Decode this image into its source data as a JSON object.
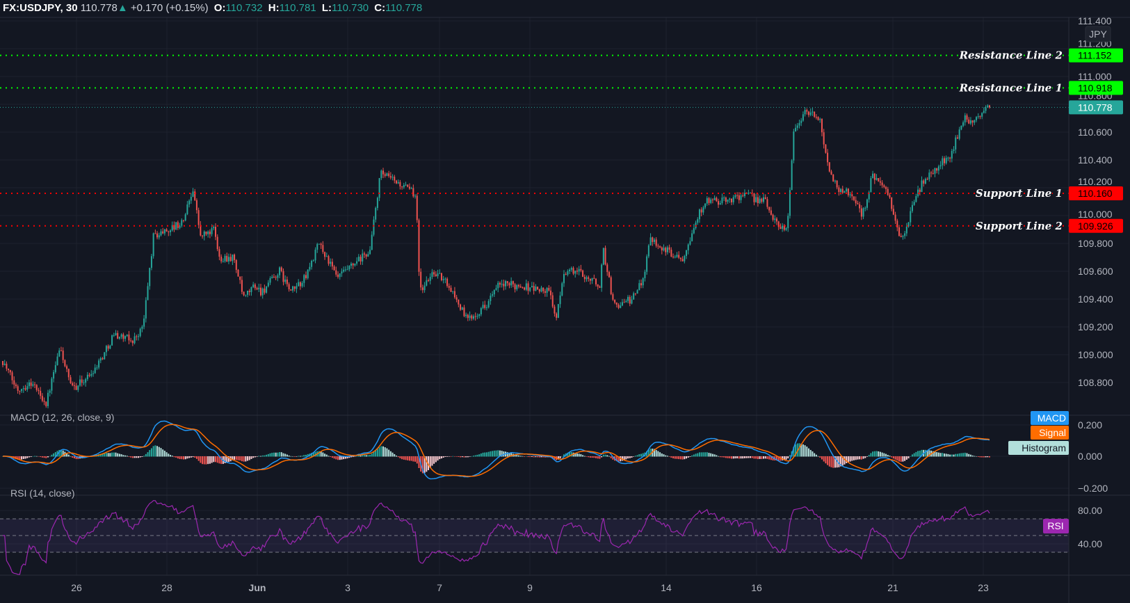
{
  "header": {
    "symbol": "FX:USDJPY, 30",
    "last": "110.778",
    "change": "+0.170 (+0.15%)",
    "o_label": "O:",
    "o": "110.732",
    "h_label": "H:",
    "h": "110.781",
    "l_label": "L:",
    "l": "110.730",
    "c_label": "C:",
    "c": "110.778"
  },
  "colors": {
    "background": "#131722",
    "grid": "#1e222d",
    "up": "#26a69a",
    "down": "#ef5350",
    "resistance": "#00ff00",
    "support": "#ff0000",
    "macd": "#2196f3",
    "signal": "#ff6d00",
    "histogram": "#b2dfdb",
    "rsi": "#9c27b0"
  },
  "currency_label": "JPY",
  "chart_data": {
    "type": "candlestick",
    "symbol": "FX:USDJPY",
    "interval": "30",
    "ylim": [
      108.65,
      111.45
    ],
    "price_ticks": [
      "108.800",
      "109.000",
      "109.200",
      "109.400",
      "109.600",
      "109.800",
      "110.000",
      "110.200",
      "110.400",
      "110.600",
      "110.800",
      "111.000",
      "111.200",
      "111.400"
    ],
    "date_ticks": [
      "26",
      "28",
      "Jun",
      "3",
      "7",
      "9",
      "14",
      "16",
      "21",
      "23"
    ],
    "price_path": [
      [
        4,
        108.9
      ],
      [
        15,
        108.75
      ],
      [
        31,
        108.8
      ],
      [
        46,
        108.65
      ],
      [
        61,
        109.05
      ],
      [
        73,
        108.75
      ],
      [
        92,
        108.85
      ],
      [
        107,
        109.0
      ],
      [
        118,
        109.15
      ],
      [
        138,
        109.1
      ],
      [
        149,
        109.2
      ],
      [
        160,
        109.85
      ],
      [
        176,
        109.9
      ],
      [
        191,
        109.95
      ],
      [
        202,
        110.2
      ],
      [
        210,
        109.85
      ],
      [
        225,
        109.9
      ],
      [
        229,
        109.7
      ],
      [
        245,
        109.7
      ],
      [
        256,
        109.4
      ],
      [
        267,
        109.5
      ],
      [
        275,
        109.45
      ],
      [
        294,
        109.6
      ],
      [
        306,
        109.45
      ],
      [
        321,
        109.55
      ],
      [
        336,
        109.8
      ],
      [
        344,
        109.7
      ],
      [
        355,
        109.55
      ],
      [
        374,
        109.65
      ],
      [
        390,
        109.75
      ],
      [
        401,
        110.3
      ],
      [
        416,
        110.25
      ],
      [
        439,
        110.15
      ],
      [
        443,
        109.45
      ],
      [
        458,
        109.6
      ],
      [
        474,
        109.5
      ],
      [
        493,
        109.25
      ],
      [
        512,
        109.35
      ],
      [
        527,
        109.5
      ],
      [
        550,
        109.5
      ],
      [
        581,
        109.45
      ],
      [
        588,
        109.25
      ],
      [
        596,
        109.6
      ],
      [
        611,
        109.6
      ],
      [
        634,
        109.5
      ],
      [
        638,
        109.75
      ],
      [
        649,
        109.35
      ],
      [
        669,
        109.4
      ],
      [
        680,
        109.55
      ],
      [
        688,
        109.85
      ],
      [
        703,
        109.75
      ],
      [
        722,
        109.7
      ],
      [
        733,
        109.9
      ],
      [
        745,
        110.1
      ],
      [
        764,
        110.1
      ],
      [
        787,
        110.15
      ],
      [
        810,
        110.1
      ],
      [
        821,
        109.95
      ],
      [
        833,
        109.9
      ],
      [
        840,
        110.6
      ],
      [
        852,
        110.75
      ],
      [
        867,
        110.7
      ],
      [
        879,
        110.3
      ],
      [
        886,
        110.2
      ],
      [
        902,
        110.15
      ],
      [
        913,
        110.0
      ],
      [
        924,
        110.3
      ],
      [
        940,
        110.15
      ],
      [
        955,
        109.8
      ],
      [
        967,
        110.1
      ],
      [
        978,
        110.25
      ],
      [
        993,
        110.35
      ],
      [
        1008,
        110.45
      ],
      [
        1020,
        110.7
      ],
      [
        1031,
        110.65
      ],
      [
        1039,
        110.75
      ],
      [
        1048,
        110.778
      ]
    ],
    "horizontal_lines": [
      {
        "name": "Resistance Line 2",
        "price": "111.152",
        "kind": "resistance"
      },
      {
        "name": "Resistance Line 1",
        "price": "110.918",
        "kind": "resistance"
      },
      {
        "name": "Support Line 1",
        "price": "110.160",
        "kind": "support"
      },
      {
        "name": "Support Line 2",
        "price": "109.926",
        "kind": "support"
      }
    ],
    "current_price": "110.778",
    "macd": {
      "title": "MACD (12, 26, close, 9)",
      "legend": [
        "MACD",
        "Signal",
        "Histogram"
      ],
      "ticks": [
        "0.200",
        "0.000",
        "−0.200"
      ],
      "ylim": [
        -0.22,
        0.24
      ]
    },
    "rsi": {
      "title": "RSI (14, close)",
      "legend": "RSI",
      "ticks": [
        "80.00",
        "40.00"
      ],
      "bands": [
        30,
        50,
        70
      ]
    }
  }
}
